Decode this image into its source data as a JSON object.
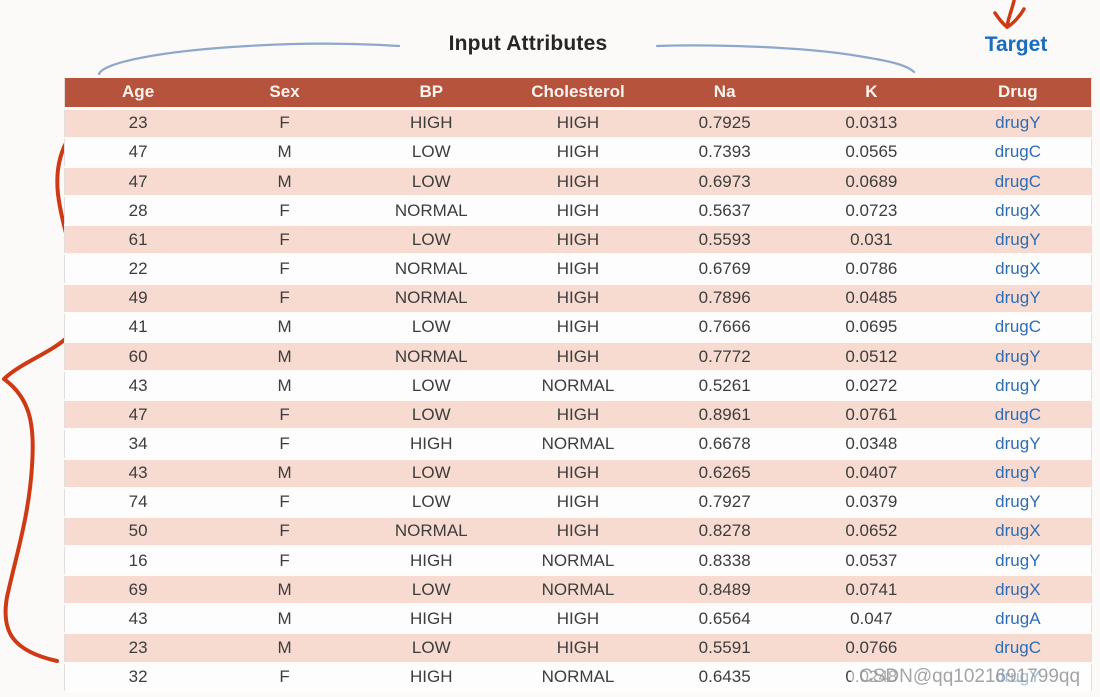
{
  "page": {
    "background": "#fbfaf8"
  },
  "annotations": {
    "input_attributes_label": "Input Attributes",
    "target_label": "Target",
    "watermark_text": "CSDN@qq1021691799qq",
    "accent_red": "#ce3a15",
    "brace_blue": "#8ea8cc",
    "target_blue": "#1a6cc0"
  },
  "chart_data": {
    "type": "table",
    "columns": [
      "Age",
      "Sex",
      "BP",
      "Cholesterol",
      "Na",
      "K",
      "Drug"
    ],
    "column_groups": [
      {
        "label": "Input Attributes",
        "columns": [
          "Age",
          "Sex",
          "BP",
          "Cholesterol",
          "Na",
          "K"
        ]
      },
      {
        "label": "Target",
        "columns": [
          "Drug"
        ]
      }
    ],
    "rows": [
      [
        "23",
        "F",
        "HIGH",
        "HIGH",
        "0.7925",
        "0.0313",
        "drugY"
      ],
      [
        "47",
        "M",
        "LOW",
        "HIGH",
        "0.7393",
        "0.0565",
        "drugC"
      ],
      [
        "47",
        "M",
        "LOW",
        "HIGH",
        "0.6973",
        "0.0689",
        "drugC"
      ],
      [
        "28",
        "F",
        "NORMAL",
        "HIGH",
        "0.5637",
        "0.0723",
        "drugX"
      ],
      [
        "61",
        "F",
        "LOW",
        "HIGH",
        "0.5593",
        "0.031",
        "drugY"
      ],
      [
        "22",
        "F",
        "NORMAL",
        "HIGH",
        "0.6769",
        "0.0786",
        "drugX"
      ],
      [
        "49",
        "F",
        "NORMAL",
        "HIGH",
        "0.7896",
        "0.0485",
        "drugY"
      ],
      [
        "41",
        "M",
        "LOW",
        "HIGH",
        "0.7666",
        "0.0695",
        "drugC"
      ],
      [
        "60",
        "M",
        "NORMAL",
        "HIGH",
        "0.7772",
        "0.0512",
        "drugY"
      ],
      [
        "43",
        "M",
        "LOW",
        "NORMAL",
        "0.5261",
        "0.0272",
        "drugY"
      ],
      [
        "47",
        "F",
        "LOW",
        "HIGH",
        "0.8961",
        "0.0761",
        "drugC"
      ],
      [
        "34",
        "F",
        "HIGH",
        "NORMAL",
        "0.6678",
        "0.0348",
        "drugY"
      ],
      [
        "43",
        "M",
        "LOW",
        "HIGH",
        "0.6265",
        "0.0407",
        "drugY"
      ],
      [
        "74",
        "F",
        "LOW",
        "HIGH",
        "0.7927",
        "0.0379",
        "drugY"
      ],
      [
        "50",
        "F",
        "NORMAL",
        "HIGH",
        "0.8278",
        "0.0652",
        "drugX"
      ],
      [
        "16",
        "F",
        "HIGH",
        "NORMAL",
        "0.8338",
        "0.0537",
        "drugY"
      ],
      [
        "69",
        "M",
        "LOW",
        "NORMAL",
        "0.8489",
        "0.0741",
        "drugX"
      ],
      [
        "43",
        "M",
        "HIGH",
        "HIGH",
        "0.6564",
        "0.047",
        "drugA"
      ],
      [
        "23",
        "M",
        "LOW",
        "HIGH",
        "0.5591",
        "0.0766",
        "drugC"
      ],
      [
        "32",
        "F",
        "HIGH",
        "NORMAL",
        "0.6435",
        "0.0248",
        "drugY"
      ]
    ],
    "colors": {
      "header_bg": "#b5533c",
      "header_text": "#fdf3ee",
      "stripe_bg": "#f8dbd0",
      "row_bg": "#fefdfd",
      "cell_text": "#3d3d3d",
      "drug_text": "#2d6db5"
    },
    "layout": {
      "stripe": "odd rows shaded",
      "grid": "white row separators",
      "drug_column_is_target": true
    }
  }
}
